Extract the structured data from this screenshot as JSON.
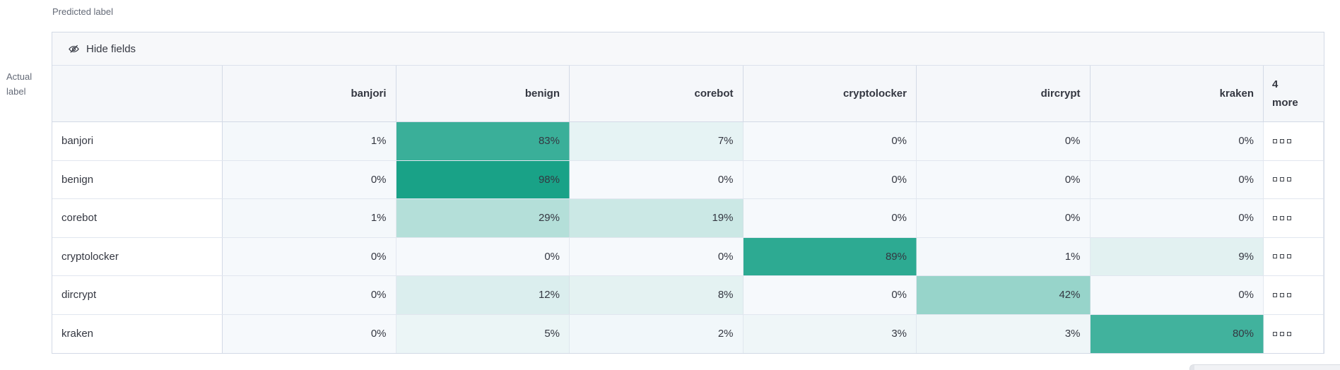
{
  "axes": {
    "predicted_label": "Predicted label",
    "actual_label": "Actual\nlabel"
  },
  "controls": {
    "hide_fields_label": "Hide fields"
  },
  "chart_data": {
    "type": "heatmap",
    "x_axis_label": "Predicted label",
    "y_axis_label": "Actual label",
    "columns": [
      "banjori",
      "benign",
      "corebot",
      "cryptolocker",
      "dircrypt",
      "kraken"
    ],
    "extra_columns_label": "4 more",
    "rows": [
      "banjori",
      "benign",
      "corebot",
      "cryptolocker",
      "dircrypt",
      "kraken"
    ],
    "unit": "%",
    "values": [
      [
        1,
        83,
        7,
        0,
        0,
        0
      ],
      [
        0,
        98,
        0,
        0,
        0,
        0
      ],
      [
        1,
        29,
        19,
        0,
        0,
        0
      ],
      [
        0,
        0,
        0,
        89,
        1,
        9
      ],
      [
        0,
        12,
        8,
        0,
        42,
        0
      ],
      [
        0,
        5,
        2,
        3,
        3,
        80
      ]
    ]
  },
  "colors": {
    "heatmap_base": "#14A085",
    "zero_cell": "#F6F9FC",
    "text": "#343741",
    "subdued_text": "#646A77",
    "header_bg": "#F5F7FA",
    "border_outer": "#D3DAE6"
  },
  "icons": {
    "hide_fields": "eye-closed-icon",
    "more_cell": "boxes-horizontal-icon"
  }
}
